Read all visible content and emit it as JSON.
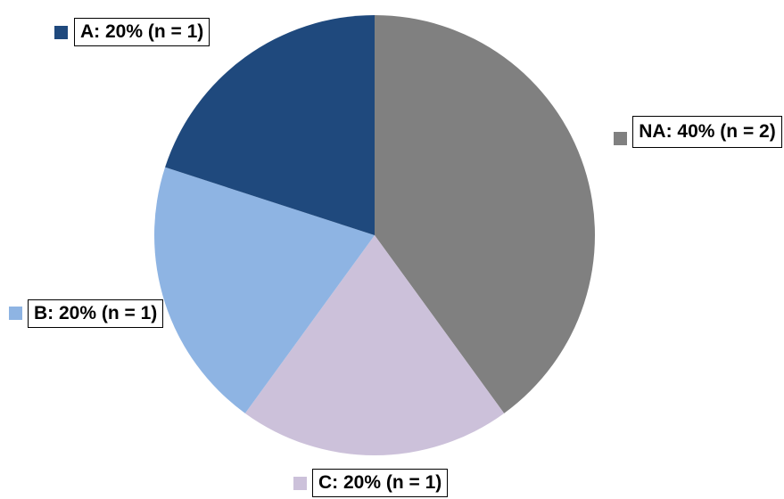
{
  "chart_data": {
    "type": "pie",
    "slices": [
      {
        "label": "NA: 40% (n = 2)",
        "category": "NA",
        "percent": 40,
        "n": 2,
        "color": "#808080"
      },
      {
        "label": "C: 20% (n = 1)",
        "category": "C",
        "percent": 20,
        "n": 1,
        "color": "#CCC1DA"
      },
      {
        "label": "B: 20% (n = 1)",
        "category": "B",
        "percent": 20,
        "n": 1,
        "color": "#8EB4E3"
      },
      {
        "label": "A: 20% (n = 1)",
        "category": "A",
        "percent": 20,
        "n": 1,
        "color": "#1F497D"
      }
    ],
    "start_angle": "12 o'clock",
    "direction": "clockwise"
  }
}
